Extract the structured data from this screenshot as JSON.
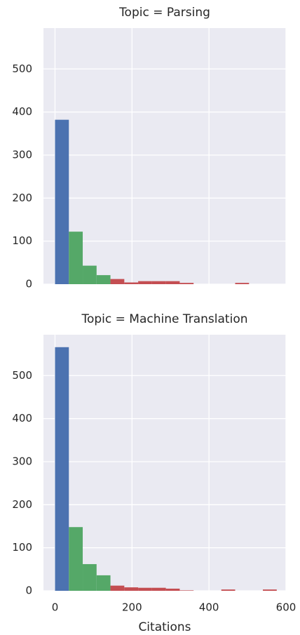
{
  "chart_data": [
    {
      "type": "histogram",
      "title": "Topic = Parsing",
      "bins": [
        0,
        36,
        72,
        108,
        144,
        180,
        216,
        252,
        288,
        324,
        360,
        396,
        432,
        468,
        504,
        540,
        576
      ],
      "counts": [
        382,
        122,
        43,
        21,
        12,
        4,
        7,
        7,
        7,
        3,
        0,
        0,
        0,
        3,
        0,
        0
      ],
      "colors": [
        "#4c72b0",
        "#55a868",
        "#55a868",
        "#55a868",
        "#c44e52",
        "#c44e52",
        "#c44e52",
        "#c44e52",
        "#c44e52",
        "#c44e52",
        "#c44e52",
        "#c44e52",
        "#c44e52",
        "#c44e52",
        "#c44e52",
        "#c44e52"
      ],
      "xlim": [
        -30,
        600
      ],
      "ylim": [
        0,
        595
      ],
      "xticks": [
        0,
        200,
        400,
        600
      ],
      "yticks": [
        0,
        100,
        200,
        300,
        400,
        500
      ],
      "grid": true
    },
    {
      "type": "histogram",
      "title": "Topic = Machine Translation",
      "xlabel": "Citations",
      "bins": [
        0,
        36,
        72,
        108,
        144,
        180,
        216,
        252,
        288,
        324,
        360,
        396,
        432,
        468,
        504,
        540,
        576
      ],
      "counts": [
        566,
        148,
        62,
        36,
        12,
        8,
        7,
        7,
        5,
        1,
        0,
        0,
        3,
        0,
        0,
        3
      ],
      "colors": [
        "#4c72b0",
        "#55a868",
        "#55a868",
        "#55a868",
        "#c44e52",
        "#c44e52",
        "#c44e52",
        "#c44e52",
        "#c44e52",
        "#c44e52",
        "#c44e52",
        "#c44e52",
        "#c44e52",
        "#c44e52",
        "#c44e52",
        "#c44e52"
      ],
      "xlim": [
        -30,
        600
      ],
      "ylim": [
        0,
        595
      ],
      "xticks": [
        0,
        200,
        400,
        600
      ],
      "yticks": [
        0,
        100,
        200,
        300,
        400,
        500
      ],
      "grid": true
    }
  ]
}
